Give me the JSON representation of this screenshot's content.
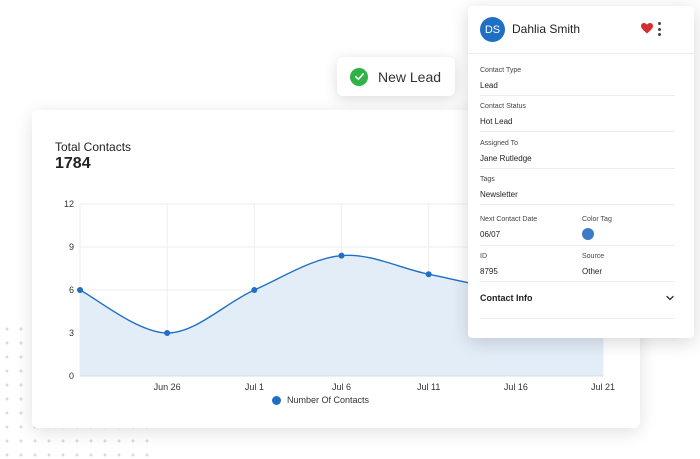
{
  "chart_card": {
    "title": "Total Contacts",
    "total": "1784"
  },
  "chart_data": {
    "type": "area",
    "x": [
      "",
      "Jun 26",
      "Jul 1",
      "Jul 6",
      "Jul 11",
      "Jul 16",
      "Jul 21"
    ],
    "series": [
      {
        "name": "Number Of Contacts",
        "values": [
          6,
          3,
          6,
          8.4,
          7.1,
          5.9,
          5.4
        ]
      }
    ],
    "y_ticks": [
      "0",
      "3",
      "6",
      "9",
      "12"
    ],
    "ylim": [
      0,
      12
    ],
    "legend": "bottom",
    "grid": true,
    "colors": {
      "line": "#1f6fc5",
      "fill": "#e3edf8"
    }
  },
  "lead_badge": {
    "label": "New Lead",
    "icon": "check-circle-icon",
    "color": "#2fb344"
  },
  "contact": {
    "initials": "DS",
    "name": "Dahlia Smith",
    "avatar_color": "#1f6fc5",
    "favorite_color": "#d32f2f",
    "fields": [
      {
        "label": "Contact Type",
        "value": "Lead"
      },
      {
        "label": "Contact Status",
        "value": "Hot Lead"
      },
      {
        "label": "Assigned To",
        "value": "Jane Rutledge"
      },
      {
        "label": "Tags",
        "value": "Newsletter"
      }
    ],
    "next_contact_date": {
      "label": "Next Contact Date",
      "value": "06/07"
    },
    "color_tag": {
      "label": "Color Tag",
      "color": "#3d7ac8"
    },
    "id": {
      "label": "ID",
      "value": "8795"
    },
    "source": {
      "label": "Source",
      "value": "Other"
    },
    "section_label": "Contact Info"
  }
}
